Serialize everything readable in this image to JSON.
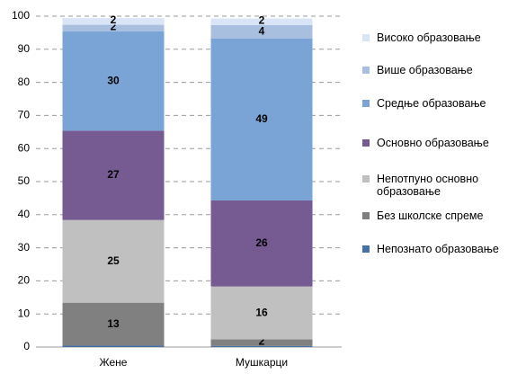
{
  "chart_data": {
    "type": "stacked-bar",
    "categories": [
      "Жене",
      "Мушкарци"
    ],
    "series": [
      {
        "name": "Непознато образовање",
        "color": "#4472a8",
        "values": [
          0.4,
          0.3
        ],
        "data_labels": false
      },
      {
        "name": "Без школске спреме",
        "color": "#808080",
        "values": [
          13,
          2
        ],
        "data_labels": true
      },
      {
        "name": "Непотпуно основно образовање",
        "color": "#c0c0c0",
        "values": [
          25,
          16
        ],
        "data_labels": true
      },
      {
        "name": "Основно образовање",
        "color": "#765a92",
        "values": [
          27,
          26
        ],
        "data_labels": true
      },
      {
        "name": "Средње образовање",
        "color": "#7aa3d6",
        "values": [
          30,
          49
        ],
        "data_labels": true
      },
      {
        "name": "Више образовање",
        "color": "#a9bfe0",
        "values": [
          2,
          4
        ],
        "data_labels": true
      },
      {
        "name": "Високо образовање",
        "color": "#d9e4f7",
        "values": [
          2,
          2
        ],
        "data_labels": true
      }
    ],
    "ylim": [
      0,
      100
    ],
    "yticks": [
      0,
      10,
      20,
      30,
      40,
      50,
      60,
      70,
      80,
      90,
      100
    ],
    "grid": true,
    "legend": "right"
  }
}
